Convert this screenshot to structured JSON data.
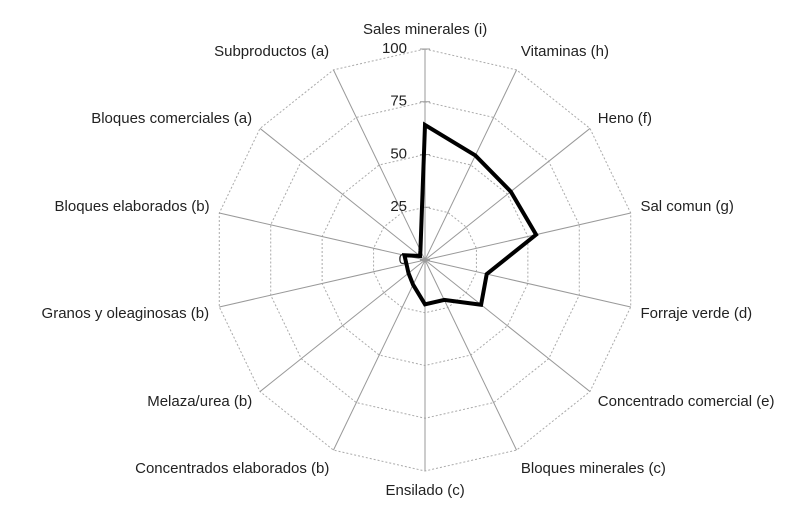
{
  "chart_data": {
    "type": "radar",
    "categories": [
      "Sales minerales (i)",
      "Vitaminas (h)",
      "Heno (f)",
      "Sal comun (g)",
      "Forraje verde (d)",
      "Concentrado comercial (e)",
      "Bloques minerales (c)",
      "Ensilado (c)",
      "Concentrados elaborados (b)",
      "Melaza/urea (b)",
      "Granos y oleaginosas (b)",
      "Bloques elaborados (b)",
      "Bloques comerciales (a)",
      "Subproductos (a)"
    ],
    "series": [
      {
        "color": "#000000",
        "values": [
          64,
          55,
          52,
          54,
          30,
          34,
          21,
          21,
          13,
          10,
          9,
          10,
          3,
          5
        ]
      }
    ],
    "rlim": [
      0,
      100
    ],
    "rticks": [
      0,
      25,
      50,
      75,
      100
    ],
    "grid": true
  }
}
